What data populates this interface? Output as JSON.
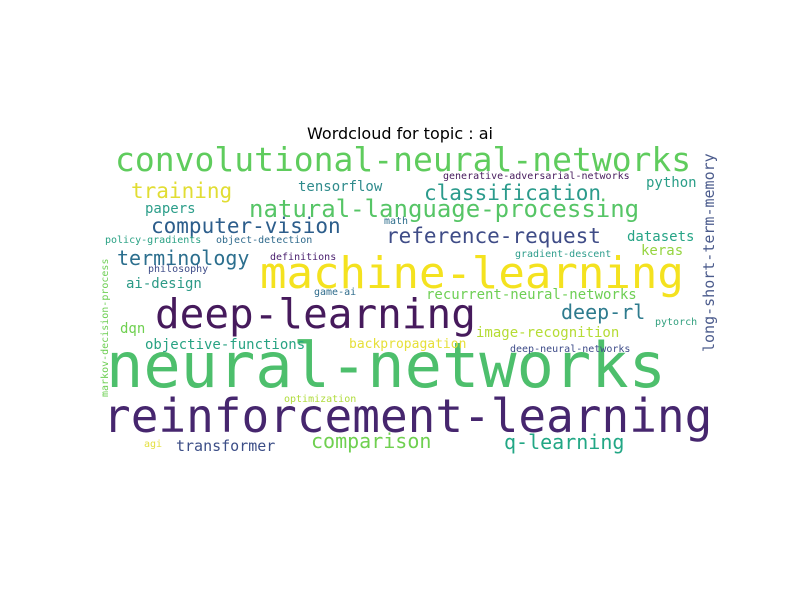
{
  "title": "Wordcloud for topic : ai",
  "words": [
    {
      "text": "neural-networks",
      "color": "#4dbf6c"
    },
    {
      "text": "reinforcement-learning",
      "color": "#46266e"
    },
    {
      "text": "machine-learning",
      "color": "#f4e21f"
    },
    {
      "text": "deep-learning",
      "color": "#461a5c"
    },
    {
      "text": "convolutional-neural-networks",
      "color": "#5fcc5d"
    },
    {
      "text": "natural-language-processing",
      "color": "#56c566"
    },
    {
      "text": "classification",
      "color": "#2b9b8c"
    },
    {
      "text": "training",
      "color": "#e1dd33"
    },
    {
      "text": "computer-vision",
      "color": "#2c5d8b"
    },
    {
      "text": "reference-request",
      "color": "#3f4c87"
    },
    {
      "text": "terminology",
      "color": "#2c6f8e"
    },
    {
      "text": "deep-rl",
      "color": "#2e7b8e"
    },
    {
      "text": "comparison",
      "color": "#6fd050"
    },
    {
      "text": "q-learning",
      "color": "#22a785"
    },
    {
      "text": "long-short-term-memory",
      "color": "#4b5b8c"
    },
    {
      "text": "tensorflow",
      "color": "#2f8b8c"
    },
    {
      "text": "python",
      "color": "#2a9e88"
    },
    {
      "text": "papers",
      "color": "#2c9e8a"
    },
    {
      "text": "datasets",
      "color": "#26a486"
    },
    {
      "text": "keras",
      "color": "#95d43f"
    },
    {
      "text": "ai-design",
      "color": "#2c9a86"
    },
    {
      "text": "recurrent-neural-networks",
      "color": "#6ecf54"
    },
    {
      "text": "image-recognition",
      "color": "#b5dc34"
    },
    {
      "text": "objective-functions",
      "color": "#28a383"
    },
    {
      "text": "backpropagation",
      "color": "#e6e03a"
    },
    {
      "text": "dqn",
      "color": "#6fd050"
    },
    {
      "text": "transformer",
      "color": "#3c4e87"
    },
    {
      "text": "pytorch",
      "color": "#33a07f"
    },
    {
      "text": "deep-neural-networks",
      "color": "#3d4b88"
    },
    {
      "text": "generative-adversarial-networks",
      "color": "#461a5c"
    },
    {
      "text": "policy-gradients",
      "color": "#2aa184"
    },
    {
      "text": "object-detection",
      "color": "#2f6a8c"
    },
    {
      "text": "philosophy",
      "color": "#3f4c88"
    },
    {
      "text": "gradient-descent",
      "color": "#2e9d8c"
    },
    {
      "text": "game-ai",
      "color": "#2f6c8c"
    },
    {
      "text": "math",
      "color": "#2e6e8c"
    },
    {
      "text": "definitions",
      "color": "#481d6d"
    },
    {
      "text": "optimization",
      "color": "#b0dc3c"
    },
    {
      "text": "agi",
      "color": "#e4e042"
    },
    {
      "text": "markov-decision-process",
      "color": "#6ecf54"
    }
  ]
}
